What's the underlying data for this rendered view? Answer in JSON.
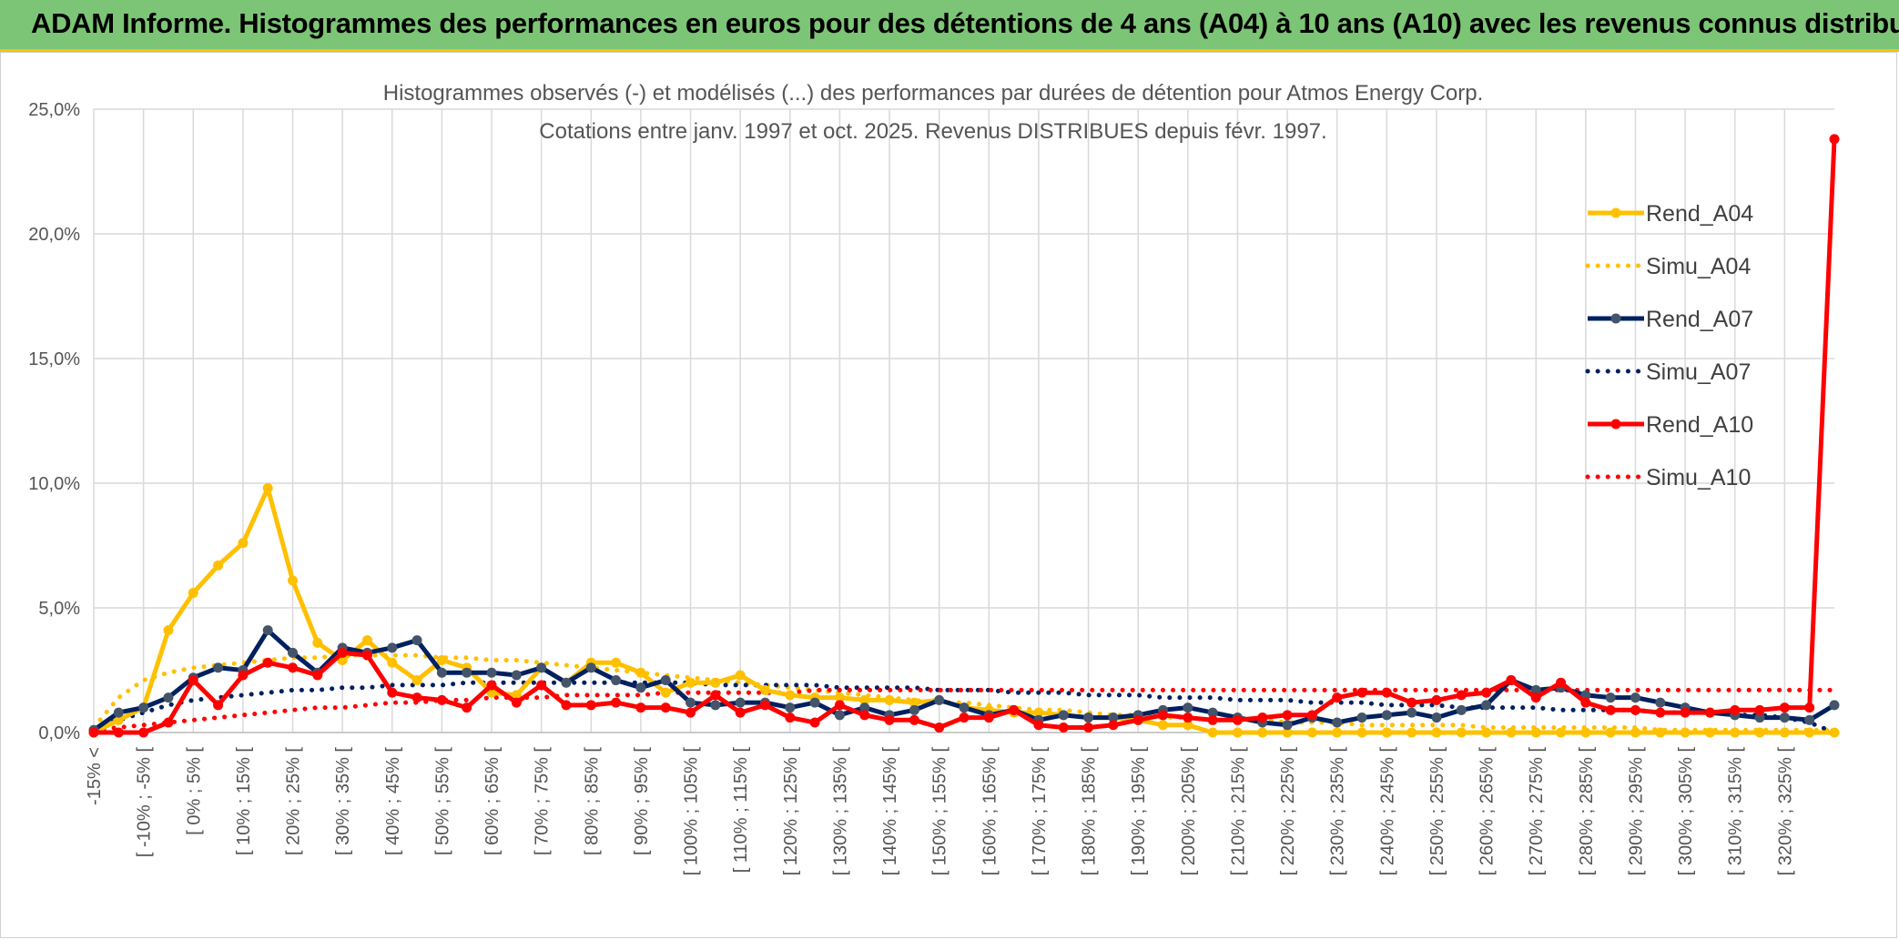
{
  "header": {
    "title": "ADAM Informe. Histogrammes des performances en euros pour des détentions de 4 ans (A04) à 10 ans (A10) avec les revenus connus distribués"
  },
  "colors": {
    "header_bg": "#7cc576",
    "accent_line": "#f0c419",
    "A04": "#ffc000",
    "A07": "#002060",
    "A10": "#ff0000"
  },
  "chart_data": {
    "type": "line",
    "title_line1": "Histogrammes observés (-) et modélisés (...) des performances par durées de détention pour Atmos Energy Corp.",
    "title_line2": "Cotations entre janv. 1997 et oct. 2025. Revenus DISTRIBUES depuis févr. 1997.",
    "xlabel": "",
    "ylabel": "",
    "ylim": [
      0,
      25
    ],
    "y_ticks": [
      "0,0%",
      "5,0%",
      "10,0%",
      "15,0%",
      "20,0%",
      "25,0%"
    ],
    "grid": true,
    "legend_position": "right",
    "x_labels": [
      "-15% <",
      "[ -10% ; -5% [",
      "[ 0% ; 5% [",
      "[ 10% ; 15% [",
      "[ 20% ; 25% [",
      "[ 30% ; 35% [",
      "[ 40% ; 45% [",
      "[ 50% ; 55% [",
      "[ 60% ; 65% [",
      "[ 70% ; 75% [",
      "[ 80% ; 85% [",
      "[ 90% ; 95% [",
      "[ 100% ; 105% [",
      "[ 110% ; 115% [",
      "[ 120% ; 125% [",
      "[ 130% ; 135% [",
      "[ 140% ; 145% [",
      "[ 150% ; 155% [",
      "[ 160% ; 165% [",
      "[ 170% ; 175% [",
      "[ 180% ; 185% [",
      "[ 190% ; 195% [",
      "[ 200% ; 205% [",
      "[ 210% ; 215% [",
      "[ 220% ; 225% [",
      "[ 230% ; 235% [",
      "[ 240% ; 245% [",
      "[ 250% ; 255% [",
      "[ 260% ; 265% [",
      "[ 270% ; 275% [",
      "[ 280% ; 285% [",
      "[ 290% ; 295% [",
      "[ 300% ; 305% [",
      "[ 310% ; 315% [",
      "[ 320% ; 325% ["
    ],
    "series": [
      {
        "name": "Rend_A04",
        "style": "solid",
        "color": "#ffc000",
        "values": [
          0.0,
          0.5,
          1.0,
          4.1,
          5.6,
          6.7,
          7.6,
          9.8,
          6.1,
          3.6,
          2.9,
          3.7,
          2.8,
          2.1,
          2.9,
          2.6,
          1.6,
          1.5,
          2.6,
          2.0,
          2.8,
          2.8,
          2.4,
          1.6,
          2.0,
          2.0,
          2.3,
          1.7,
          1.5,
          1.4,
          1.4,
          1.3,
          1.3,
          1.2,
          1.3,
          1.0,
          0.9,
          0.8,
          0.8,
          0.7,
          0.6,
          0.6,
          0.5,
          0.3,
          0.3,
          0.0,
          0.0,
          0.0,
          0.0,
          0.0,
          0.0,
          0.0,
          0.0,
          0.0,
          0.0,
          0.0,
          0.0,
          0.0,
          0.0,
          0.0,
          0.0,
          0.0,
          0.0,
          0.0,
          0.0,
          0.0,
          0.0,
          0.0,
          0.0,
          0.0,
          0.0
        ]
      },
      {
        "name": "Simu_A04",
        "style": "dotted",
        "color": "#ffc000",
        "values": [
          0.2,
          1.4,
          2.1,
          2.4,
          2.6,
          2.7,
          2.8,
          2.9,
          3.0,
          3.0,
          3.1,
          3.1,
          3.1,
          3.1,
          3.0,
          3.0,
          2.9,
          2.9,
          2.8,
          2.7,
          2.6,
          2.5,
          2.4,
          2.3,
          2.2,
          2.1,
          2.0,
          1.9,
          1.8,
          1.7,
          1.6,
          1.5,
          1.4,
          1.3,
          1.2,
          1.2,
          1.1,
          1.0,
          0.9,
          0.9,
          0.8,
          0.7,
          0.7,
          0.6,
          0.6,
          0.5,
          0.5,
          0.5,
          0.4,
          0.4,
          0.4,
          0.3,
          0.3,
          0.3,
          0.3,
          0.3,
          0.2,
          0.2,
          0.2,
          0.2,
          0.2,
          0.2,
          0.2,
          0.1,
          0.1,
          0.1,
          0.1,
          0.1,
          0.1,
          0.1,
          0.1
        ]
      },
      {
        "name": "Rend_A07",
        "style": "solid",
        "color": "#002060",
        "values": [
          0.1,
          0.8,
          1.0,
          1.4,
          2.2,
          2.6,
          2.5,
          4.1,
          3.2,
          2.4,
          3.4,
          3.2,
          3.4,
          3.7,
          2.4,
          2.4,
          2.4,
          2.3,
          2.6,
          2.0,
          2.6,
          2.1,
          1.8,
          2.1,
          1.2,
          1.1,
          1.2,
          1.2,
          1.0,
          1.2,
          0.7,
          1.0,
          0.7,
          0.9,
          1.3,
          1.0,
          0.7,
          0.9,
          0.5,
          0.7,
          0.6,
          0.6,
          0.7,
          0.9,
          1.0,
          0.8,
          0.6,
          0.4,
          0.3,
          0.6,
          0.4,
          0.6,
          0.7,
          0.8,
          0.6,
          0.9,
          1.1,
          2.1,
          1.7,
          1.8,
          1.5,
          1.4,
          1.4,
          1.2,
          1.0,
          0.8,
          0.7,
          0.6,
          0.6,
          0.5,
          1.1
        ]
      },
      {
        "name": "Simu_A07",
        "style": "dotted",
        "color": "#002060",
        "values": [
          0.2,
          0.5,
          0.8,
          1.1,
          1.3,
          1.4,
          1.5,
          1.6,
          1.7,
          1.7,
          1.8,
          1.8,
          1.9,
          1.9,
          1.9,
          2.0,
          2.0,
          2.0,
          2.0,
          2.0,
          2.0,
          2.0,
          2.0,
          2.0,
          2.0,
          1.9,
          1.9,
          1.9,
          1.9,
          1.9,
          1.8,
          1.8,
          1.8,
          1.8,
          1.7,
          1.7,
          1.7,
          1.6,
          1.6,
          1.6,
          1.5,
          1.5,
          1.5,
          1.4,
          1.4,
          1.4,
          1.3,
          1.3,
          1.3,
          1.2,
          1.2,
          1.2,
          1.1,
          1.1,
          1.1,
          1.0,
          1.0,
          1.0,
          1.0,
          0.9,
          0.9,
          0.9,
          0.9,
          0.8,
          0.8,
          0.8,
          0.7,
          0.7,
          0.6,
          0.4,
          0.0
        ]
      },
      {
        "name": "Rend_A10",
        "style": "solid",
        "color": "#ff0000",
        "values": [
          0.0,
          0.0,
          0.0,
          0.4,
          2.1,
          1.1,
          2.3,
          2.8,
          2.6,
          2.3,
          3.2,
          3.1,
          1.6,
          1.4,
          1.3,
          1.0,
          1.9,
          1.2,
          1.9,
          1.1,
          1.1,
          1.2,
          1.0,
          1.0,
          0.8,
          1.5,
          0.8,
          1.1,
          0.6,
          0.4,
          1.1,
          0.7,
          0.5,
          0.5,
          0.2,
          0.6,
          0.6,
          0.9,
          0.3,
          0.2,
          0.2,
          0.3,
          0.5,
          0.7,
          0.6,
          0.5,
          0.5,
          0.6,
          0.7,
          0.7,
          1.4,
          1.6,
          1.6,
          1.2,
          1.3,
          1.5,
          1.6,
          2.1,
          1.4,
          2.0,
          1.2,
          0.9,
          0.9,
          0.8,
          0.8,
          0.8,
          0.9,
          0.9,
          1.0,
          1.0,
          23.8
        ]
      },
      {
        "name": "Simu_A10",
        "style": "dotted",
        "color": "#ff0000",
        "values": [
          0.1,
          0.2,
          0.3,
          0.4,
          0.5,
          0.6,
          0.7,
          0.8,
          0.9,
          1.0,
          1.0,
          1.1,
          1.2,
          1.2,
          1.3,
          1.3,
          1.4,
          1.4,
          1.4,
          1.5,
          1.5,
          1.5,
          1.5,
          1.6,
          1.6,
          1.6,
          1.6,
          1.6,
          1.6,
          1.7,
          1.7,
          1.7,
          1.7,
          1.7,
          1.7,
          1.7,
          1.7,
          1.7,
          1.7,
          1.7,
          1.7,
          1.7,
          1.7,
          1.7,
          1.7,
          1.7,
          1.7,
          1.7,
          1.7,
          1.7,
          1.7,
          1.7,
          1.7,
          1.7,
          1.7,
          1.7,
          1.7,
          1.7,
          1.7,
          1.7,
          1.7,
          1.7,
          1.7,
          1.7,
          1.7,
          1.7,
          1.7,
          1.7,
          1.7,
          1.7,
          1.7
        ]
      }
    ]
  }
}
